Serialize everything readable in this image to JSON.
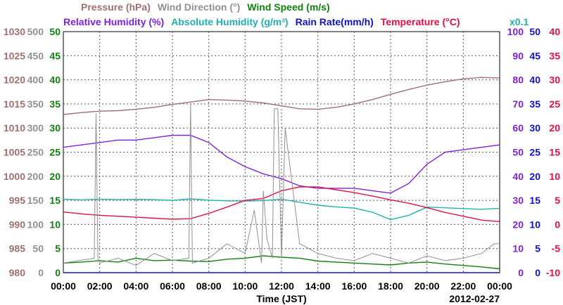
{
  "chart_data": {
    "type": "line",
    "date_label": "2012-02-27",
    "xlabel": "Time (JST)",
    "x_ticks": [
      "00:00",
      "02:00",
      "04:00",
      "06:00",
      "08:00",
      "10:00",
      "12:00",
      "14:00",
      "16:00",
      "18:00",
      "20:00",
      "22:00",
      "00:00"
    ],
    "x_range_hours": [
      0,
      24
    ],
    "legend": {
      "row1": [
        {
          "text": "Pressure (hPa)",
          "color": "#a07070"
        },
        {
          "text": "Wind Direction (°)",
          "color": "#909090"
        },
        {
          "text": "Wind Speed (m/s)",
          "color": "#108010"
        }
      ],
      "row2": [
        {
          "text": "Relative Humidity (%)",
          "color": "#8020e0"
        },
        {
          "text": "Absolute Humidity (g/m³)",
          "color": "#20b0b0"
        },
        {
          "text": "Rain Rate(mm/h)",
          "color": "#1010d0"
        },
        {
          "text": "Temperature (°C)",
          "color": "#e01040"
        }
      ],
      "abs_humidity_scale": "x0.1"
    },
    "axes": {
      "pressure": {
        "ticks": [
          "1030",
          "1025",
          "1020",
          "1015",
          "1010",
          "1005",
          "1000",
          "995",
          "990",
          "985",
          "980"
        ],
        "range": [
          980,
          1030
        ],
        "color": "#a07070"
      },
      "wind_direction": {
        "ticks": [
          "500",
          "450",
          "400",
          "350",
          "300",
          "250",
          "200",
          "150",
          "100",
          "50",
          "0"
        ],
        "range": [
          0,
          500
        ],
        "color": "#909090"
      },
      "wind_speed": {
        "ticks": [
          "50",
          "45",
          "40",
          "35",
          "30",
          "25",
          "20",
          "15",
          "10",
          "5",
          "0"
        ],
        "range": [
          0,
          50
        ],
        "color": "#108010"
      },
      "humidity": {
        "ticks": [
          "100",
          "90",
          "80",
          "70",
          "60",
          "50",
          "40",
          "30",
          "20",
          "10",
          "0"
        ],
        "range": [
          0,
          100
        ],
        "color": "#8020e0"
      },
      "rain_rate": {
        "ticks": [
          "50",
          "45",
          "40",
          "35",
          "30",
          "25",
          "20",
          "15",
          "10",
          "5",
          "0"
        ],
        "range": [
          0,
          50
        ],
        "color": "#1010d0"
      },
      "temperature": {
        "ticks": [
          "40",
          "35",
          "30",
          "25",
          "20",
          "15",
          "10",
          "5",
          "0",
          "-5",
          "-10"
        ],
        "range": [
          -10,
          40
        ],
        "color": "#e01040"
      }
    },
    "series": [
      {
        "name": "Pressure (hPa)",
        "key": "pressure",
        "color": "#a07070",
        "axis": "pressure",
        "x": [
          0,
          1,
          2,
          3,
          4,
          5,
          6,
          7,
          8,
          9,
          10,
          11,
          12,
          13,
          14,
          15,
          16,
          17,
          18,
          19,
          20,
          21,
          22,
          23,
          24
        ],
        "y": [
          1012.8,
          1013.2,
          1013.5,
          1013.6,
          1013.9,
          1014.3,
          1014.9,
          1015.4,
          1015.9,
          1015.8,
          1015.6,
          1015.2,
          1014.6,
          1014.0,
          1013.9,
          1014.3,
          1015.0,
          1015.9,
          1017.0,
          1018.0,
          1018.9,
          1019.6,
          1020.2,
          1020.5,
          1020.4
        ]
      },
      {
        "name": "Relative Humidity (%)",
        "key": "rh",
        "color": "#8020e0",
        "axis": "humidity",
        "x": [
          0,
          1,
          2,
          3,
          4,
          5,
          6,
          7,
          8,
          9,
          10,
          11,
          12,
          13,
          14,
          15,
          16,
          17,
          18,
          19,
          20,
          21,
          22,
          23,
          24
        ],
        "y": [
          52,
          53,
          54,
          55,
          55,
          56,
          57,
          57,
          54,
          48,
          44,
          41,
          39,
          36,
          35,
          35,
          35,
          34,
          33,
          37,
          45,
          50,
          51,
          52,
          53
        ]
      },
      {
        "name": "Absolute Humidity (g/m³)",
        "key": "ah",
        "color": "#20b0b0",
        "axis": "humidity",
        "x": [
          0,
          1,
          2,
          3,
          4,
          5,
          6,
          7,
          8,
          9,
          10,
          11,
          12,
          13,
          14,
          15,
          16,
          17,
          18,
          19,
          20,
          21,
          22,
          23,
          24
        ],
        "y": [
          30.5,
          30.2,
          30.5,
          30.3,
          30.4,
          30.3,
          30.0,
          30.6,
          30.1,
          29.8,
          29.7,
          29.9,
          30.5,
          29.2,
          28.0,
          27.3,
          26.8,
          25.1,
          22.0,
          23.8,
          27.2,
          26.9,
          26.6,
          26.3,
          26.7
        ]
      },
      {
        "name": "Temperature (°C)",
        "key": "temp",
        "color": "#e01040",
        "axis": "temperature",
        "x": [
          0,
          1,
          2,
          3,
          4,
          5,
          6,
          7,
          8,
          9,
          10,
          11,
          12,
          13,
          14,
          15,
          16,
          17,
          18,
          19,
          20,
          21,
          22,
          23,
          24
        ],
        "y": [
          2.6,
          2.2,
          1.9,
          1.7,
          1.5,
          1.3,
          1.1,
          1.2,
          2.3,
          3.6,
          5.0,
          5.4,
          7.0,
          7.8,
          7.8,
          7.2,
          6.6,
          5.9,
          5.1,
          4.4,
          3.5,
          2.5,
          1.7,
          0.9,
          0.6
        ]
      },
      {
        "name": "Wind Speed (m/s)",
        "key": "ws",
        "color": "#108010",
        "axis": "wind_speed",
        "x": [
          0,
          1,
          2,
          3,
          4,
          5,
          6,
          7,
          8,
          9,
          10,
          11,
          12,
          13,
          14,
          15,
          16,
          17,
          18,
          19,
          20,
          21,
          22,
          23,
          24
        ],
        "y": [
          2.0,
          2.2,
          2.5,
          2.2,
          3.0,
          2.5,
          2.6,
          2.4,
          2.3,
          2.8,
          3.0,
          3.5,
          3.2,
          3.0,
          2.4,
          2.2,
          2.0,
          1.8,
          1.6,
          2.0,
          2.2,
          1.8,
          1.5,
          1.2,
          0.8
        ]
      },
      {
        "name": "Wind Direction (°)",
        "key": "wd",
        "color": "#909090",
        "axis": "wind_direction",
        "x": [
          0,
          1.7,
          1.8,
          1.9,
          2.0,
          3,
          4,
          5,
          6,
          6.9,
          7.0,
          7.1,
          8,
          9,
          10,
          10.5,
          10.9,
          11.0,
          11.2,
          11.5,
          11.6,
          11.8,
          12.0,
          12.2,
          13,
          14,
          15,
          16,
          17,
          18,
          19,
          20,
          21,
          22,
          23,
          23.7,
          24
        ],
        "y": [
          20,
          30,
          330,
          30,
          20,
          30,
          15,
          40,
          25,
          30,
          350,
          20,
          30,
          60,
          40,
          130,
          20,
          170,
          70,
          30,
          340,
          340,
          30,
          300,
          60,
          40,
          30,
          25,
          40,
          30,
          20,
          35,
          25,
          30,
          40,
          60,
          60
        ]
      },
      {
        "name": "Rain Rate(mm/h)",
        "key": "rain",
        "color": "#1010d0",
        "axis": "rain_rate",
        "x": [
          0,
          24
        ],
        "y": [
          0,
          0
        ]
      }
    ]
  }
}
